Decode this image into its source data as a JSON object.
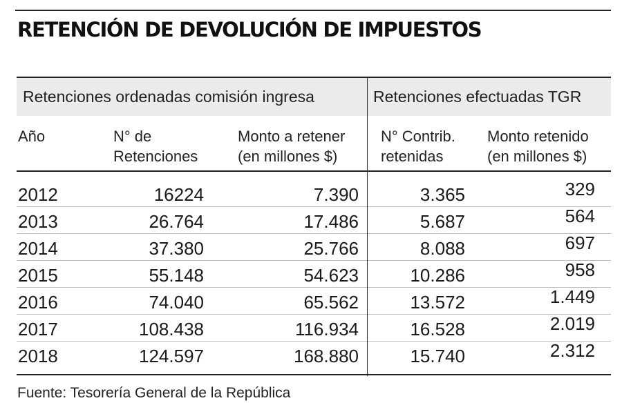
{
  "title": "RETENCIÓN DE DEVOLUCIÓN DE IMPUESTOS",
  "source": "Fuente: Tesorería General de la República",
  "chart_data": {
    "type": "table",
    "title": "RETENCIÓN DE DEVOLUCIÓN DE IMPUESTOS",
    "column_groups": [
      "Retenciones ordenadas comisión ingresa",
      "Retenciones efectuadas TGR"
    ],
    "columns": [
      [
        "Año",
        ""
      ],
      [
        "N° de",
        "Retenciones"
      ],
      [
        "Monto a retener",
        "(en millones $)"
      ],
      [
        "N° Contrib.",
        "retenidas"
      ],
      [
        "Monto retenido",
        "(en millones $)"
      ]
    ],
    "rows": [
      [
        "2012",
        "16224",
        "7.390",
        "3.365",
        "329"
      ],
      [
        "2013",
        "26.764",
        "17.486",
        "5.687",
        "564"
      ],
      [
        "2014",
        "37.380",
        "25.766",
        "8.088",
        "697"
      ],
      [
        "2015",
        "55.148",
        "54.623",
        "10.286",
        "958"
      ],
      [
        "2016",
        "74.040",
        "65.562",
        "13.572",
        "1.449"
      ],
      [
        "2017",
        "108.438",
        "116.934",
        "16.528",
        "2.019"
      ],
      [
        "2018",
        "124.597",
        "168.880",
        "15.740",
        "2.312"
      ]
    ]
  }
}
